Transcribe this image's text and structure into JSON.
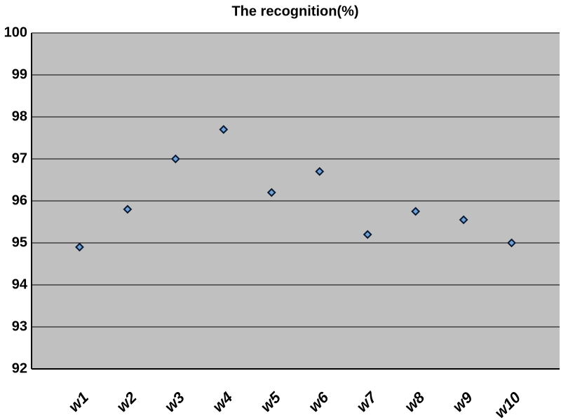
{
  "chart_data": {
    "type": "scatter",
    "title": "The recognition(%)",
    "categories": [
      "w1",
      "w2",
      "w3",
      "w4",
      "w5",
      "w6",
      "w7",
      "w8",
      "w9",
      "w10"
    ],
    "values": [
      94.9,
      95.8,
      97.0,
      97.7,
      96.2,
      96.7,
      95.2,
      95.75,
      95.55,
      95.0
    ],
    "color": "#6fa3d8",
    "ylim": [
      92,
      100
    ],
    "yticks": [
      92,
      93,
      94,
      95,
      96,
      97,
      98,
      99,
      100
    ],
    "grid": true
  }
}
